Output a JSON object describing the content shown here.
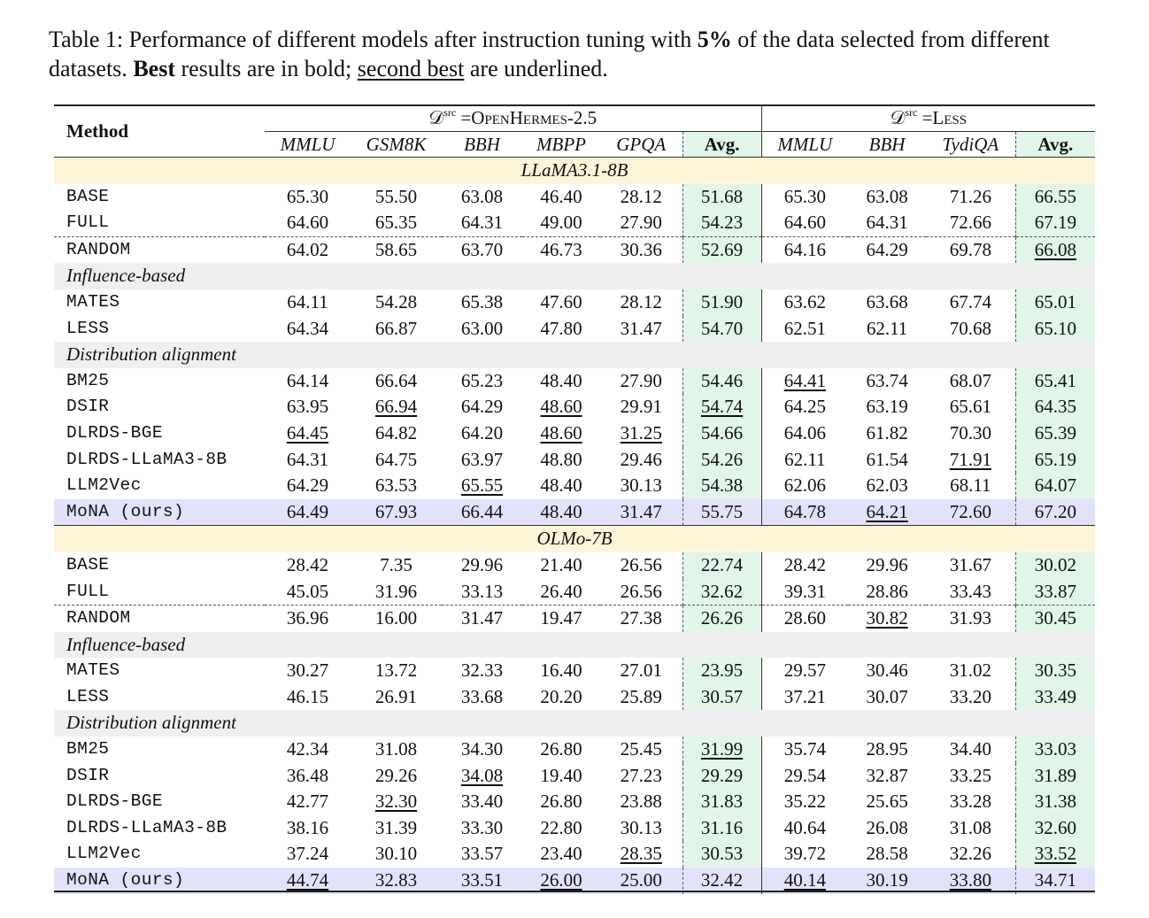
{
  "caption": {
    "label": "Table 1:",
    "part1": " Performance of different models after instruction tuning with ",
    "pct": "5%",
    "part2": " of the data selected from different datasets. ",
    "best": "Best",
    "part3": " results are in bold; ",
    "second": "second best",
    "part4": " are underlined."
  },
  "header": {
    "method": "Method",
    "group1_sym": "𝒟",
    "group1_sup": "src",
    "group1_name": " =OpenHermes-2.5",
    "group2_sym": "𝒟",
    "group2_sup": "src",
    "group2_name": " =Less",
    "cols": [
      "MMLU",
      "GSM8K",
      "BBH",
      "MBPP",
      "GPQA",
      "Avg.",
      "MMLU",
      "BBH",
      "TydiQA",
      "Avg."
    ]
  },
  "models": [
    {
      "name": "LLaMA3.1-8B",
      "baselines": [
        {
          "method": "BASE",
          "vals": [
            "65.30",
            "55.50",
            "63.08",
            "46.40",
            "28.12",
            "51.68",
            "65.30",
            "63.08",
            "71.26",
            "66.55"
          ],
          "bold": [],
          "under": []
        },
        {
          "method": "FULL",
          "vals": [
            "64.60",
            "65.35",
            "64.31",
            "49.00",
            "27.90",
            "54.23",
            "64.60",
            "64.31",
            "72.66",
            "67.19"
          ],
          "bold": [],
          "under": []
        },
        {
          "method": "RANDOM",
          "vals": [
            "64.02",
            "58.65",
            "63.70",
            "46.73",
            "30.36",
            "52.69",
            "64.16",
            "64.29",
            "69.78",
            "66.08"
          ],
          "bold": [
            7
          ],
          "under": [
            9
          ]
        }
      ],
      "groups": [
        {
          "label": "Influence-based",
          "rows": [
            {
              "method": "MATES",
              "vals": [
                "64.11",
                "54.28",
                "65.38",
                "47.60",
                "28.12",
                "51.90",
                "63.62",
                "63.68",
                "67.74",
                "65.01"
              ],
              "bold": [],
              "under": []
            },
            {
              "method": "LESS",
              "vals": [
                "64.34",
                "66.87",
                "63.00",
                "47.80",
                "31.47",
                "54.70",
                "62.51",
                "62.11",
                "70.68",
                "65.10"
              ],
              "bold": [
                4
              ],
              "under": []
            }
          ]
        },
        {
          "label": "Distribution alignment",
          "rows": [
            {
              "method": "BM25",
              "vals": [
                "64.14",
                "66.64",
                "65.23",
                "48.40",
                "27.90",
                "54.46",
                "64.41",
                "63.74",
                "68.07",
                "65.41"
              ],
              "bold": [],
              "under": [
                6
              ]
            },
            {
              "method": "DSIR",
              "vals": [
                "63.95",
                "66.94",
                "64.29",
                "48.60",
                "29.91",
                "54.74",
                "64.25",
                "63.19",
                "65.61",
                "64.35"
              ],
              "bold": [],
              "under": [
                1,
                3,
                5
              ]
            },
            {
              "method": "DLRDS-BGE",
              "vals": [
                "64.45",
                "64.82",
                "64.20",
                "48.60",
                "31.25",
                "54.66",
                "64.06",
                "61.82",
                "70.30",
                "65.39"
              ],
              "bold": [],
              "under": [
                0,
                3,
                4
              ]
            },
            {
              "method": "DLRDS-LLaMA3-8B",
              "vals": [
                "64.31",
                "64.75",
                "63.97",
                "48.80",
                "29.46",
                "54.26",
                "62.11",
                "61.54",
                "71.91",
                "65.19"
              ],
              "bold": [
                3
              ],
              "under": [
                8
              ]
            },
            {
              "method": "LLM2Vec",
              "vals": [
                "64.29",
                "63.53",
                "65.55",
                "48.40",
                "30.13",
                "54.38",
                "62.06",
                "62.03",
                "68.11",
                "64.07"
              ],
              "bold": [],
              "under": [
                2
              ]
            }
          ]
        }
      ],
      "ours": {
        "method": "MoNA (ours)",
        "vals": [
          "64.49",
          "67.93",
          "66.44",
          "48.40",
          "31.47",
          "55.75",
          "64.78",
          "64.21",
          "72.60",
          "67.20"
        ],
        "bold": [
          0,
          1,
          2,
          4,
          5,
          6,
          8,
          9
        ],
        "under": [
          7
        ]
      }
    },
    {
      "name": "OLMo-7B",
      "baselines": [
        {
          "method": "BASE",
          "vals": [
            "28.42",
            "7.35",
            "29.96",
            "21.40",
            "26.56",
            "22.74",
            "28.42",
            "29.96",
            "31.67",
            "30.02"
          ],
          "bold": [],
          "under": []
        },
        {
          "method": "FULL",
          "vals": [
            "45.05",
            "31.96",
            "33.13",
            "26.40",
            "26.56",
            "32.62",
            "39.31",
            "28.86",
            "33.43",
            "33.87"
          ],
          "bold": [],
          "under": []
        },
        {
          "method": "RANDOM",
          "vals": [
            "36.96",
            "16.00",
            "31.47",
            "19.47",
            "27.38",
            "26.26",
            "28.60",
            "30.82",
            "31.93",
            "30.45"
          ],
          "bold": [],
          "under": [
            7
          ]
        }
      ],
      "groups": [
        {
          "label": "Influence-based",
          "rows": [
            {
              "method": "MATES",
              "vals": [
                "30.27",
                "13.72",
                "32.33",
                "16.40",
                "27.01",
                "23.95",
                "29.57",
                "30.46",
                "31.02",
                "30.35"
              ],
              "bold": [],
              "under": []
            },
            {
              "method": "LESS",
              "vals": [
                "46.15",
                "26.91",
                "33.68",
                "20.20",
                "25.89",
                "30.57",
                "37.21",
                "30.07",
                "33.20",
                "33.49"
              ],
              "bold": [
                0
              ],
              "under": []
            }
          ]
        },
        {
          "label": "Distribution alignment",
          "rows": [
            {
              "method": "BM25",
              "vals": [
                "42.34",
                "31.08",
                "34.30",
                "26.80",
                "25.45",
                "31.99",
                "35.74",
                "28.95",
                "34.40",
                "33.03"
              ],
              "bold": [
                2,
                3,
                8
              ],
              "under": [
                5
              ]
            },
            {
              "method": "DSIR",
              "vals": [
                "36.48",
                "29.26",
                "34.08",
                "19.40",
                "27.23",
                "29.29",
                "29.54",
                "32.87",
                "33.25",
                "31.89"
              ],
              "bold": [
                7
              ],
              "under": [
                2
              ]
            },
            {
              "method": "DLRDS-BGE",
              "vals": [
                "42.77",
                "32.30",
                "33.40",
                "26.80",
                "23.88",
                "31.83",
                "35.22",
                "25.65",
                "33.28",
                "31.38"
              ],
              "bold": [
                3
              ],
              "under": [
                1
              ]
            },
            {
              "method": "DLRDS-LLaMA3-8B",
              "vals": [
                "38.16",
                "31.39",
                "33.30",
                "22.80",
                "30.13",
                "31.16",
                "40.64",
                "26.08",
                "31.08",
                "32.60"
              ],
              "bold": [
                4,
                6
              ],
              "under": []
            },
            {
              "method": "LLM2Vec",
              "vals": [
                "37.24",
                "30.10",
                "33.57",
                "23.40",
                "28.35",
                "30.53",
                "39.72",
                "28.58",
                "32.26",
                "33.52"
              ],
              "bold": [],
              "under": [
                4,
                9
              ]
            }
          ]
        }
      ],
      "ours": {
        "method": "MoNA (ours)",
        "vals": [
          "44.74",
          "32.83",
          "33.51",
          "26.00",
          "25.00",
          "32.42",
          "40.14",
          "30.19",
          "33.80",
          "34.71"
        ],
        "bold": [
          1,
          5,
          9
        ],
        "under": [
          0,
          3,
          6,
          8
        ]
      }
    }
  ]
}
